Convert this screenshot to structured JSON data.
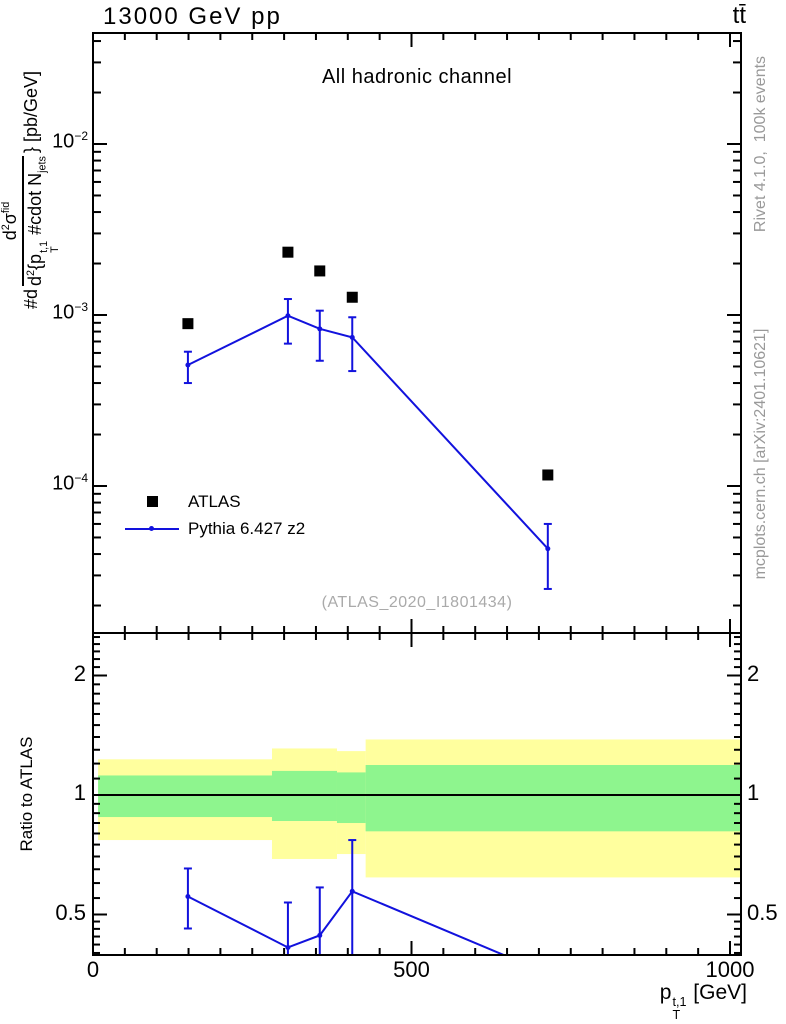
{
  "header": {
    "beam_label": "13000 GeV pp",
    "process_label": "tt̄"
  },
  "side_labels": {
    "generator": "Rivet 4.1.0,  100k events",
    "reference": "mcplots.cern.ch [arXiv:2401.10621]"
  },
  "watermark": "(ATLAS_2020_I1801434)",
  "chart_data": {
    "type": "line",
    "title": "All hadronic channel",
    "x_axis": {
      "range_gev": [
        0,
        1017
      ],
      "major_ticks": [
        0,
        500,
        1000
      ],
      "major_tick_labels": [
        "0",
        "500",
        "1000"
      ],
      "minor_tick_step_gev": 50,
      "title": {
        "base": "p",
        "sup": "t,1",
        "sub": "T",
        "unit": " [GeV]"
      }
    },
    "main_panel": {
      "y_axis": {
        "scale": "log10",
        "range": [
          1.35e-05,
          0.046
        ],
        "base": "10",
        "decade_labels": [
          {
            "value": 0.01,
            "exp": "−2"
          },
          {
            "value": 0.001,
            "exp": "−3"
          },
          {
            "value": 0.0001,
            "exp": "−4"
          }
        ],
        "title": {
          "prefix": "#d",
          "num_d": "d",
          "num_d_exp": "2",
          "num_sigma": "σ",
          "num_sup": "fid",
          "den_d": "d",
          "den_d_exp": "2",
          "den_brace_p": "{p",
          "den_p_sup": "t,1",
          "den_p_sub": "T",
          "den_cdot_n": " #cdot N",
          "den_n_sub": "jets",
          "suffix": "} [pb/GeV]"
        }
      },
      "series": [
        {
          "name": "ATLAS",
          "style": "scatter-square",
          "color": "#000000",
          "x_gev": [
            149,
            306,
            356,
            407,
            714
          ],
          "y_pb_gev": [
            0.00089,
            0.00233,
            0.00181,
            0.00127,
            0.000116
          ]
        },
        {
          "name": "Pythia 6.427 z2",
          "style": "line-errorbars",
          "color": "#1212dd",
          "x_gev": [
            149,
            306,
            356,
            407,
            714
          ],
          "y_pb_gev": [
            0.00051,
            0.00099,
            0.00083,
            0.00074,
            4.3e-05
          ],
          "y_err_up": [
            0.00061,
            0.00124,
            0.00106,
            0.00097,
            6e-05
          ],
          "y_err_down": [
            0.0004,
            0.00068,
            0.00054,
            0.00047,
            2.5e-05
          ]
        }
      ]
    },
    "ratio_panel": {
      "y_axis": {
        "scale": "log2",
        "range": [
          0.394,
          2.56
        ],
        "tick_values": [
          0.5,
          1,
          2
        ],
        "tick_labels": [
          "0.5",
          "1",
          "2"
        ],
        "title": "Ratio to ATLAS"
      },
      "unity_line": 1.0,
      "uncertainty_bands": {
        "yellow_color": "#ffff9e",
        "green_color": "#8ef58e",
        "segments": [
          {
            "x_gev": [
              8,
              281
            ],
            "yellow": [
              0.77,
              1.23
            ],
            "green": [
              0.88,
              1.12
            ]
          },
          {
            "x_gev": [
              281,
              383
            ],
            "yellow": [
              0.69,
              1.31
            ],
            "green": [
              0.86,
              1.15
            ]
          },
          {
            "x_gev": [
              383,
              428
            ],
            "yellow": [
              0.71,
              1.29
            ],
            "green": [
              0.85,
              1.14
            ]
          },
          {
            "x_gev": [
              428,
              1017
            ],
            "yellow": [
              0.62,
              1.38
            ],
            "green": [
              0.81,
              1.19
            ]
          }
        ]
      },
      "ratio_line": {
        "color": "#1212dd",
        "x_gev": [
          149,
          306,
          356,
          407,
          714
        ],
        "ratio": [
          0.555,
          0.413,
          0.443,
          0.572,
          0.355
        ],
        "err_up": [
          0.653,
          0.536,
          0.585,
          0.77,
          null
        ],
        "err_down": [
          0.461,
          null,
          null,
          null,
          null
        ]
      }
    },
    "legend": {
      "items": [
        {
          "label": "ATLAS",
          "marker": "black-square"
        },
        {
          "label": "Pythia 6.427 z2",
          "marker": "blue-line-dot"
        }
      ]
    }
  }
}
